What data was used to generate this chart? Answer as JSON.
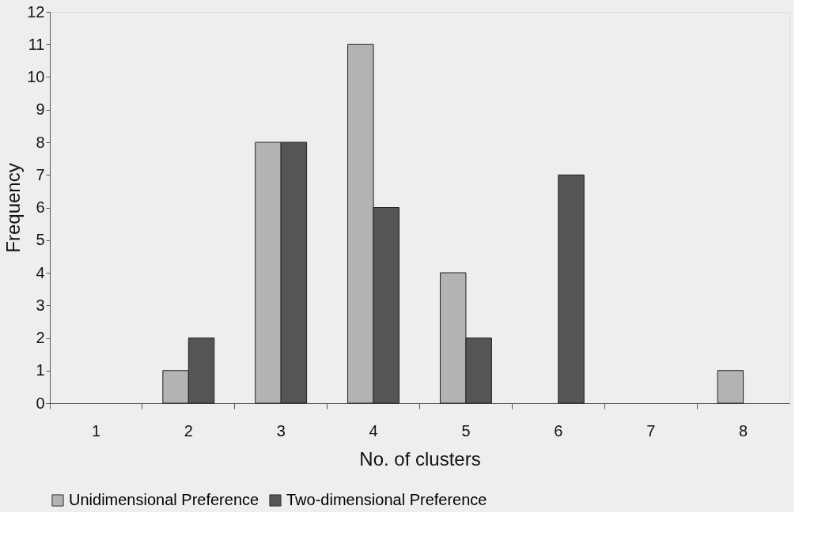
{
  "chart_data": {
    "type": "bar",
    "xlabel": "No. of clusters",
    "ylabel": "Frequency",
    "categories": [
      "1",
      "2",
      "3",
      "4",
      "5",
      "6",
      "7",
      "8"
    ],
    "series": [
      {
        "name": "Unidimensional Preference",
        "color": "#b3b3b3",
        "values": [
          null,
          1,
          8,
          11,
          4,
          null,
          null,
          1
        ]
      },
      {
        "name": "Two-dimensional Preference",
        "color": "#555555",
        "values": [
          null,
          2,
          8,
          6,
          2,
          7,
          null,
          null
        ]
      }
    ],
    "ylim": [
      0,
      12
    ],
    "yticks": [
      0,
      1,
      2,
      3,
      4,
      5,
      6,
      7,
      8,
      9,
      10,
      11,
      12
    ],
    "grid": false,
    "legend": "bottom"
  }
}
